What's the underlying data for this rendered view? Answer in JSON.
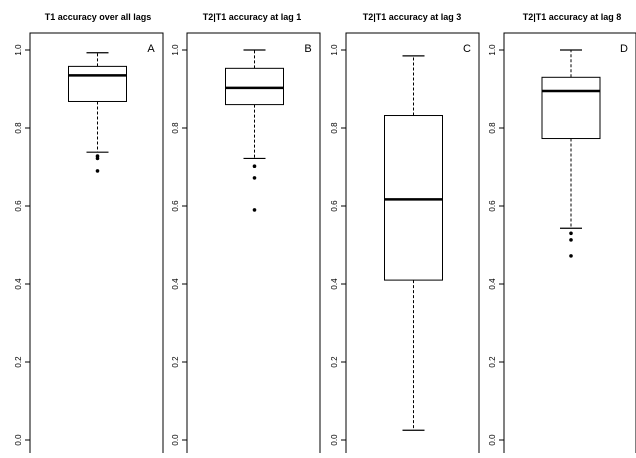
{
  "chart_data": [
    {
      "type": "boxplot",
      "title": "T1 accuracy over all lags",
      "panel_label": "A",
      "ylim": [
        0.0,
        1.0
      ],
      "yticks": [
        "0.0",
        "0.2",
        "0.4",
        "0.6",
        "0.8",
        "1.0"
      ],
      "box": {
        "whisker_low": 0.738,
        "q1": 0.868,
        "median": 0.935,
        "q3": 0.958,
        "whisker_high": 0.993
      },
      "outliers": [
        0.728,
        0.722,
        0.69
      ]
    },
    {
      "type": "boxplot",
      "title": "T2|T1 accuracy at lag 1",
      "panel_label": "B",
      "ylim": [
        0.0,
        1.0
      ],
      "yticks": [
        "0.0",
        "0.2",
        "0.4",
        "0.6",
        "0.8",
        "1.0"
      ],
      "box": {
        "whisker_low": 0.722,
        "q1": 0.86,
        "median": 0.903,
        "q3": 0.953,
        "whisker_high": 1.0
      },
      "outliers": [
        0.702,
        0.672,
        0.59
      ]
    },
    {
      "type": "boxplot",
      "title": "T2|T1 accuracy at lag 3",
      "panel_label": "C",
      "ylim": [
        0.0,
        1.0
      ],
      "yticks": [
        "0.0",
        "0.2",
        "0.4",
        "0.6",
        "0.8",
        "1.0"
      ],
      "box": {
        "whisker_low": 0.025,
        "q1": 0.41,
        "median": 0.617,
        "q3": 0.832,
        "whisker_high": 0.985
      },
      "outliers": []
    },
    {
      "type": "boxplot",
      "title": "T2|T1 accuracy at lag 8",
      "panel_label": "D",
      "ylim": [
        0.0,
        1.0
      ],
      "yticks": [
        "0.0",
        "0.2",
        "0.4",
        "0.6",
        "0.8",
        "1.0"
      ],
      "box": {
        "whisker_low": 0.543,
        "q1": 0.773,
        "median": 0.895,
        "q3": 0.93,
        "whisker_high": 1.0
      },
      "outliers": [
        0.53,
        0.513,
        0.472
      ]
    }
  ]
}
